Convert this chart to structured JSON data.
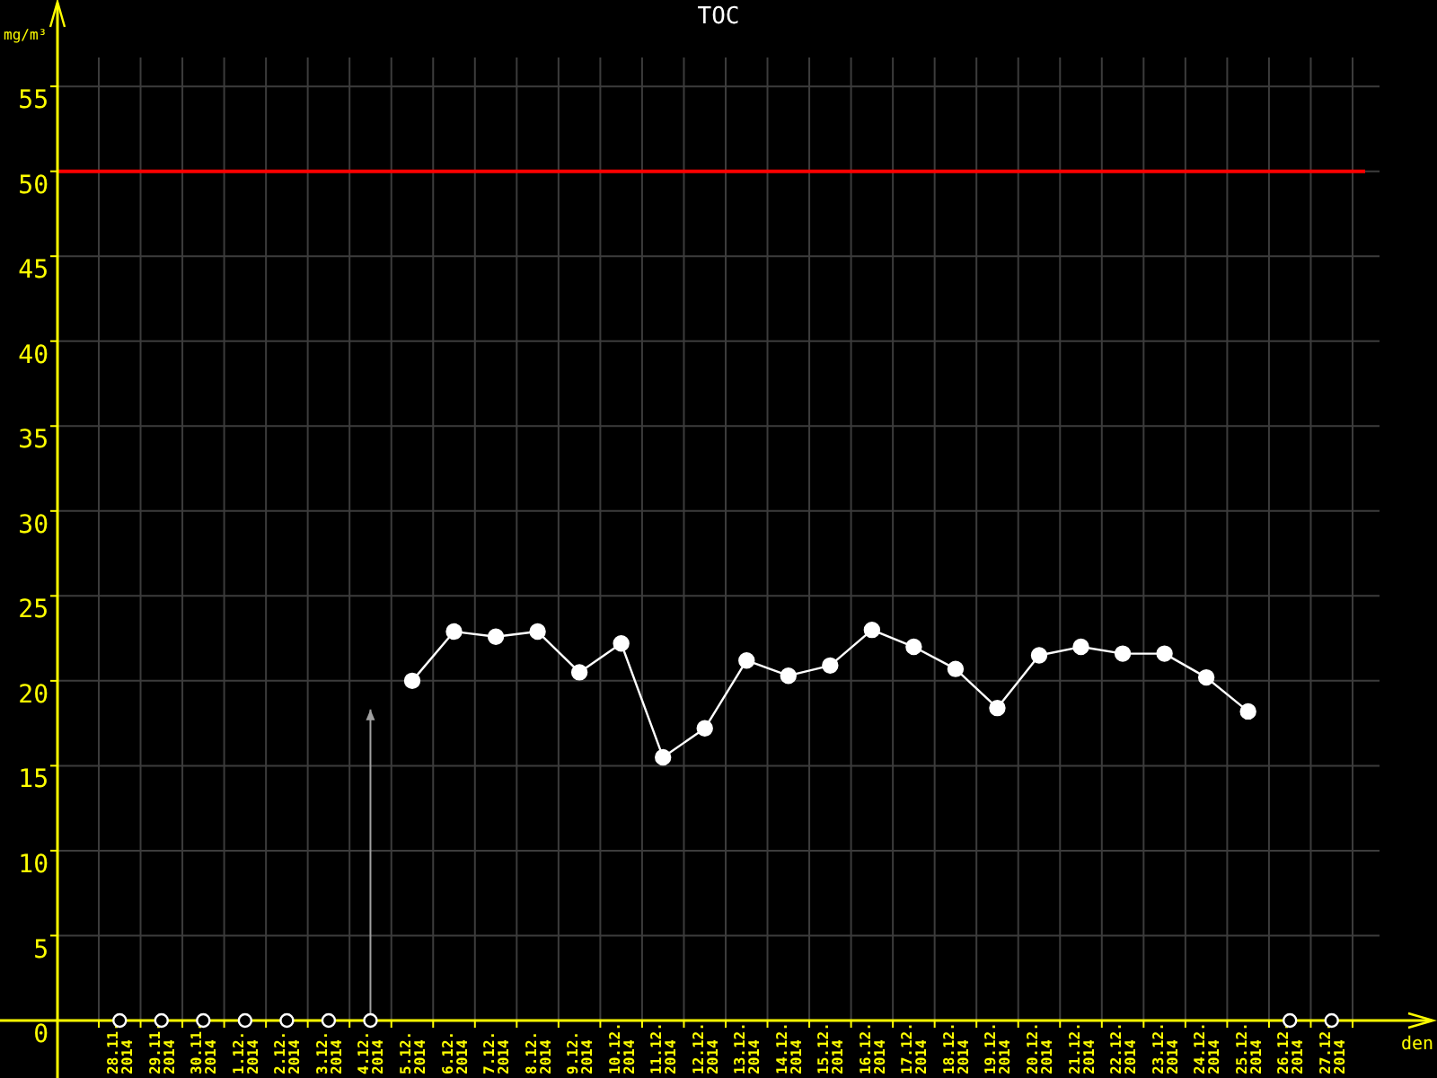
{
  "chart_data": {
    "type": "line",
    "title": "TOC",
    "xlabel": "den",
    "ylabel": "mg/m³",
    "categories": [
      "28.11. 2014",
      "29.11. 2014",
      "30.11. 2014",
      "1.12. 2014",
      "2.12. 2014",
      "3.12. 2014",
      "4.12. 2014",
      "5.12. 2014",
      "6.12. 2014",
      "7.12. 2014",
      "8.12. 2014",
      "9.12. 2014",
      "10.12. 2014",
      "11.12. 2014",
      "12.12. 2014",
      "13.12. 2014",
      "14.12. 2014",
      "15.12. 2014",
      "16.12. 2014",
      "17.12. 2014",
      "18.12. 2014",
      "19.12. 2014",
      "20.12. 2014",
      "21.12. 2014",
      "22.12. 2014",
      "23.12. 2014",
      "24.12. 2014",
      "25.12. 2014",
      "26.12. 2014",
      "27.12. 2014"
    ],
    "series": [
      {
        "color": "#ffffff",
        "values": [
          null,
          null,
          null,
          null,
          null,
          null,
          null,
          20.0,
          22.9,
          22.6,
          22.9,
          20.5,
          22.2,
          15.5,
          17.2,
          21.2,
          20.3,
          20.9,
          23.0,
          22.0,
          20.7,
          18.4,
          21.5,
          22.0,
          21.6,
          21.6,
          20.2,
          18.2,
          null,
          null
        ]
      },
      {
        "type": "scatter",
        "color": "#ffffff",
        "values": [
          0,
          0,
          0,
          0,
          0,
          0,
          0,
          null,
          null,
          null,
          null,
          null,
          null,
          null,
          null,
          null,
          null,
          null,
          null,
          null,
          null,
          null,
          null,
          null,
          null,
          null,
          null,
          null,
          0,
          0
        ]
      }
    ],
    "ylim": [
      0,
      56.7
    ],
    "yticks": [
      0,
      5,
      10,
      15,
      20,
      25,
      30,
      35,
      40,
      45,
      50,
      55
    ],
    "grid": true,
    "marker": "circle",
    "ref_lines": [
      {
        "axis": "y",
        "value": 50,
        "color": "#ff0000"
      }
    ]
  }
}
